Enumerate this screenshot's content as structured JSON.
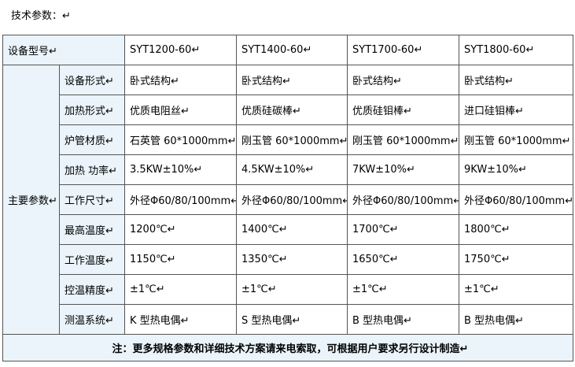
{
  "heading": "技术参数：↵",
  "table": {
    "header": {
      "label": "设备型号↵",
      "models": [
        "SYT1200-60↵",
        "SYT1400-60↵",
        "SYT1700-60↵",
        "SYT1800-60↵"
      ]
    },
    "group_label": "主要参数↵",
    "rows": [
      {
        "label": "设备形式↵",
        "values": [
          "卧式结构↵",
          "卧式结构↵",
          "卧式结构↵",
          "卧式结构↵"
        ]
      },
      {
        "label": "加热形式↵",
        "values": [
          "优质电阻丝↵",
          "优质硅碳棒↵",
          "优质硅钼棒↵",
          "进口硅钼棒↵"
        ]
      },
      {
        "label": "炉管材质↵",
        "values": [
          "石英管 60*1000mm↵",
          "刚玉管 60*1000mm↵",
          "刚玉管 60*1000mm↵",
          "刚玉管 60*1000mm↵"
        ]
      },
      {
        "label": "加热 功率↵",
        "values": [
          "3.5KW±10%↵",
          "4.5KW±10%↵",
          "7KW±10%↵",
          "9KW±10%↵"
        ]
      },
      {
        "label": "工作尺寸↵",
        "values": [
          "外径Φ60/80/100mm↵",
          "外径Φ60/80/100mm↵",
          "外径Φ60/80/100mm↵",
          "外径Φ60/80/100mm↵"
        ]
      },
      {
        "label": "最高温度↵",
        "values": [
          "1200℃↵",
          "1400℃↵",
          "1700℃↵",
          "1800℃↵"
        ]
      },
      {
        "label": "工作温度↵",
        "values": [
          "1150℃↵",
          "1350℃↵",
          "1650℃↵",
          "1750℃↵"
        ]
      },
      {
        "label": "控温精度↵",
        "values": [
          "±1℃↵",
          "±1℃↵",
          "±1℃↵",
          "±1℃↵"
        ]
      },
      {
        "label": "测温系统↵",
        "values": [
          "K 型热电偶↵",
          "S 型热电偶↵",
          "B 型热电偶↵",
          "B 型热电偶↵"
        ]
      }
    ],
    "note": "注：更多规格参数和详细技术方案请来电索取，可根据用户要求另行设计制造↵"
  }
}
